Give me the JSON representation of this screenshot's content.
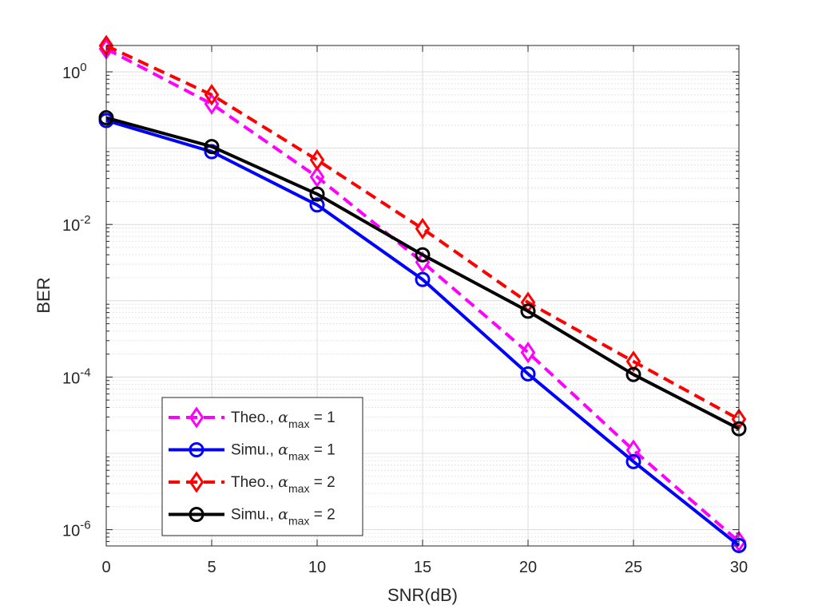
{
  "chart_data": {
    "type": "line",
    "xlabel": "SNR(dB)",
    "ylabel": "BER",
    "yscale": "log",
    "xlim": [
      0,
      30
    ],
    "ylim": [
      6e-07,
      3
    ],
    "grid": true,
    "legend_placement": "bottom-left",
    "x": [
      0,
      5,
      10,
      15,
      20,
      25,
      30
    ],
    "x_ticks": [
      "0",
      "5",
      "10",
      "15",
      "20",
      "25",
      "30"
    ],
    "y_ticks": [
      {
        "value": 1,
        "mantissa": "10",
        "exponent": "0"
      },
      {
        "value": 0.01,
        "mantissa": "10",
        "exponent": "-2"
      },
      {
        "value": 0.0001,
        "mantissa": "10",
        "exponent": "-4"
      },
      {
        "value": 1e-06,
        "mantissa": "10",
        "exponent": "-6"
      }
    ],
    "series": [
      {
        "name": "Theo., α_max = 1",
        "label_prefix": "Theo., ",
        "label_symbol": "α",
        "label_sub": "max",
        "label_suffix": " = 1",
        "color": "#ff00ff",
        "dash": true,
        "marker": "diamond",
        "values": [
          2.0,
          0.38,
          0.042,
          0.0032,
          0.00021,
          1.1e-05,
          7e-07
        ]
      },
      {
        "name": "Simu., α_max = 1",
        "label_prefix": "Simu., ",
        "label_symbol": "α",
        "label_sub": "max",
        "label_suffix": " = 1",
        "color": "#0000ff",
        "dash": false,
        "marker": "circle",
        "values": [
          0.23,
          0.09,
          0.018,
          0.0019,
          0.00011,
          7.8e-06,
          6.2e-07
        ]
      },
      {
        "name": "Theo., α_max = 2",
        "label_prefix": "Theo., ",
        "label_symbol": "α",
        "label_sub": "max",
        "label_suffix": " = 2",
        "color": "#ff0000",
        "dash": true,
        "marker": "diamond",
        "values": [
          2.2,
          0.5,
          0.07,
          0.0088,
          0.00095,
          0.00016,
          2.8e-05
        ]
      },
      {
        "name": "Simu., α_max = 2",
        "label_prefix": "Simu., ",
        "label_symbol": "α",
        "label_sub": "max",
        "label_suffix": " = 2",
        "color": "#000000",
        "dash": false,
        "marker": "circle",
        "values": [
          0.25,
          0.105,
          0.025,
          0.004,
          0.00073,
          0.000108,
          2.1e-05
        ]
      }
    ]
  }
}
